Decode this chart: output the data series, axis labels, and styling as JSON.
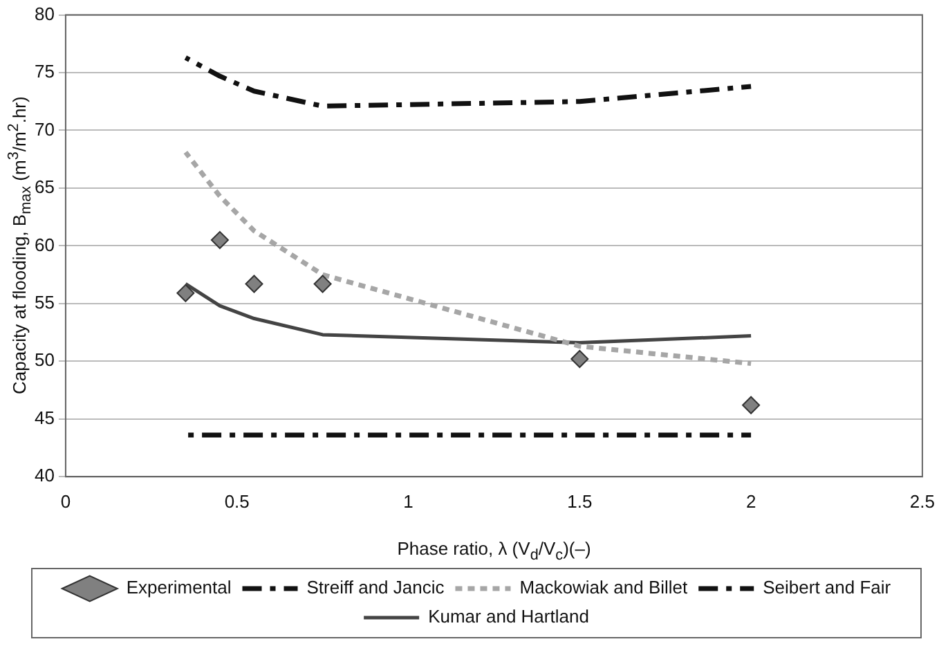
{
  "chart_data": {
    "type": "line",
    "xlabel": "Phase ratio, λ (V$_{d}$/V$_{c}$)(–)",
    "ylabel": "Capacity at flooding, B$_{max}$  (m$^{3}$/m$^{2}$.hr)",
    "x": [
      0.35,
      0.45,
      0.55,
      0.75,
      1.5,
      2
    ],
    "series": [
      {
        "name": "Experimental",
        "type": "scatter",
        "marker": "diamond",
        "color": "#808080",
        "values": [
          55.9,
          60.5,
          56.7,
          56.7,
          50.2,
          46.2
        ]
      },
      {
        "name": "Streiff and Jancic",
        "line_style": "dashed",
        "color": "#111111",
        "values": [
          76.3,
          74.7,
          73.4,
          72.1,
          72.5,
          73.8
        ]
      },
      {
        "name": "Mackowiak and Billet",
        "line_style": "dotted",
        "color": "#a6a6a6",
        "values": [
          68.1,
          64.3,
          61.3,
          57.5,
          51.3,
          49.8
        ]
      },
      {
        "name": "Seibert and Fair",
        "line_style": "dashed",
        "color": "#111111",
        "values": [
          43.6,
          43.6,
          43.6,
          43.6,
          43.6,
          43.6
        ]
      },
      {
        "name": "Kumar and Hartland",
        "line_style": "solid",
        "color": "#444444",
        "values": [
          56.7,
          54.8,
          53.7,
          52.3,
          51.6,
          52.2
        ]
      }
    ],
    "xlim": [
      0,
      2.5
    ],
    "xticks": [
      0,
      0.5,
      1,
      1.5,
      2,
      2.5
    ],
    "ylim": [
      40,
      80
    ],
    "yticks": [
      40,
      45,
      50,
      55,
      60,
      65,
      70,
      75,
      80
    ],
    "grid": "y",
    "legend": "bottom",
    "marker": "none"
  }
}
